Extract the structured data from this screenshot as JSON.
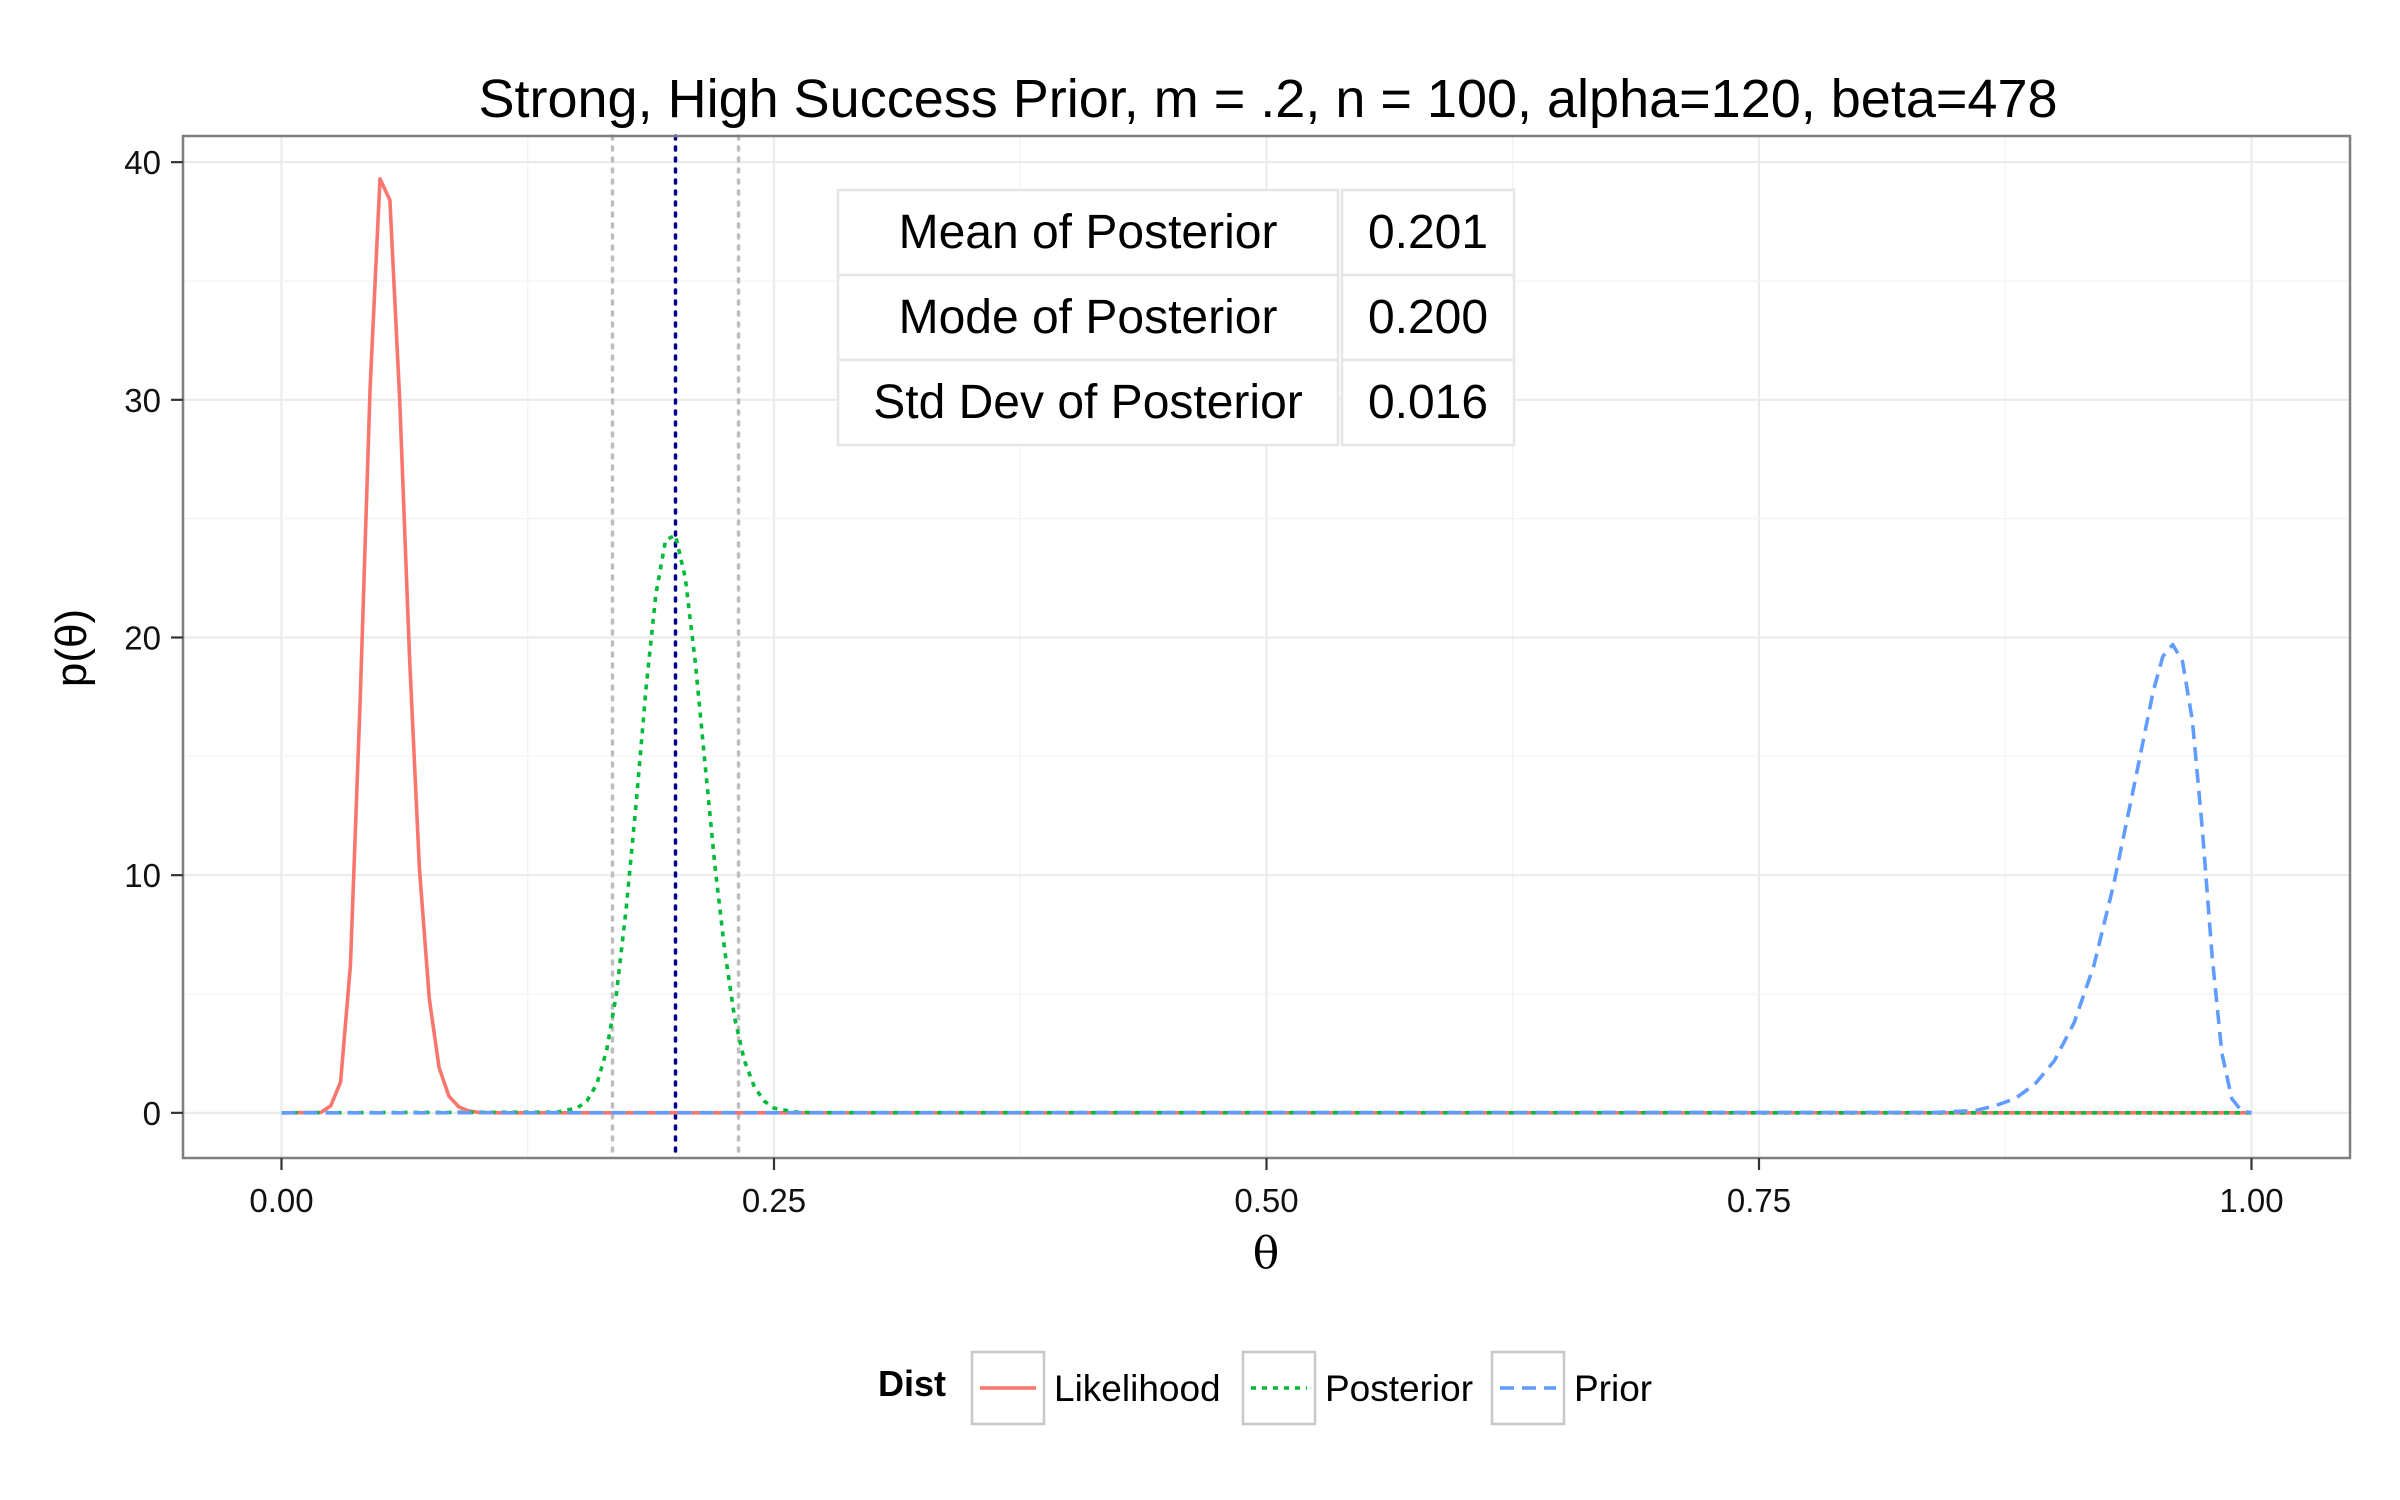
{
  "chart_data": {
    "type": "line",
    "title": "Strong, High Success Prior, m = .2, n = 100, alpha=120, beta=478",
    "xlabel": "θ",
    "ylabel": "p(θ)",
    "xlim": [
      -0.05,
      1.05
    ],
    "ylim": [
      -1.9,
      41.1
    ],
    "x_ticks": [
      0,
      0.25,
      0.5,
      0.75,
      1.0
    ],
    "x_tick_labels": [
      "0.00",
      "0.25",
      "0.50",
      "0.75",
      "1.00"
    ],
    "y_ticks": [
      0,
      10,
      20,
      30,
      40
    ],
    "y_tick_labels": [
      "0",
      "10",
      "20",
      "30",
      "40"
    ],
    "grid": true,
    "legend": {
      "title": "Dist",
      "placement": "bottom",
      "entries": [
        "Likelihood",
        "Posterior",
        "Prior"
      ]
    },
    "series": [
      {
        "name": "Likelihood",
        "color": "#F8766D",
        "dash": "solid",
        "x": [
          0.0,
          0.02,
          0.025,
          0.03,
          0.035,
          0.04,
          0.045,
          0.05,
          0.055,
          0.06,
          0.065,
          0.07,
          0.075,
          0.08,
          0.085,
          0.09,
          0.095,
          0.1,
          0.11,
          0.12,
          1.0
        ],
        "y": [
          0,
          0.02,
          0.3,
          1.3,
          6.2,
          17.5,
          30.5,
          39.3,
          38.4,
          30.0,
          19.2,
          10.3,
          4.8,
          1.9,
          0.7,
          0.25,
          0.08,
          0.02,
          0.003,
          0,
          0
        ]
      },
      {
        "name": "Posterior",
        "color": "#00BA38",
        "dash": "dotted",
        "x": [
          0.0,
          0.14,
          0.15,
          0.155,
          0.16,
          0.165,
          0.17,
          0.175,
          0.18,
          0.185,
          0.19,
          0.195,
          0.2,
          0.205,
          0.21,
          0.215,
          0.22,
          0.225,
          0.23,
          0.235,
          0.24,
          0.245,
          0.25,
          0.26,
          0.27,
          1.0
        ],
        "y": [
          0,
          0.03,
          0.2,
          0.5,
          1.2,
          2.6,
          5.0,
          8.6,
          13.0,
          17.8,
          21.8,
          24.1,
          24.3,
          22.5,
          19.0,
          14.7,
          10.4,
          6.8,
          4.0,
          2.2,
          1.1,
          0.5,
          0.2,
          0.04,
          0.005,
          0
        ]
      },
      {
        "name": "Prior",
        "color": "#619CFF",
        "dash": "dashed",
        "x": [
          0.0,
          0.84,
          0.86,
          0.87,
          0.88,
          0.89,
          0.9,
          0.91,
          0.92,
          0.93,
          0.94,
          0.95,
          0.955,
          0.96,
          0.965,
          0.97,
          0.975,
          0.98,
          0.985,
          0.99,
          0.995,
          1.0
        ],
        "y": [
          0,
          0.02,
          0.1,
          0.3,
          0.6,
          1.2,
          2.2,
          3.8,
          6.2,
          9.6,
          13.6,
          17.7,
          19.2,
          19.7,
          19.0,
          16.5,
          12.0,
          6.6,
          2.5,
          0.6,
          0.08,
          0
        ]
      }
    ],
    "reference_lines": [
      {
        "x": 0.168,
        "color": "#BEBEBE",
        "style": "dotted"
      },
      {
        "x": 0.2,
        "color": "#00008B",
        "style": "dotted"
      },
      {
        "x": 0.232,
        "color": "#BEBEBE",
        "style": "dotted"
      }
    ],
    "annotation_table": {
      "rows": [
        {
          "label": "Mean of Posterior",
          "value": "0.201"
        },
        {
          "label": "Mode of Posterior",
          "value": "0.200"
        },
        {
          "label": "Std Dev of Posterior",
          "value": "0.016"
        }
      ]
    }
  }
}
